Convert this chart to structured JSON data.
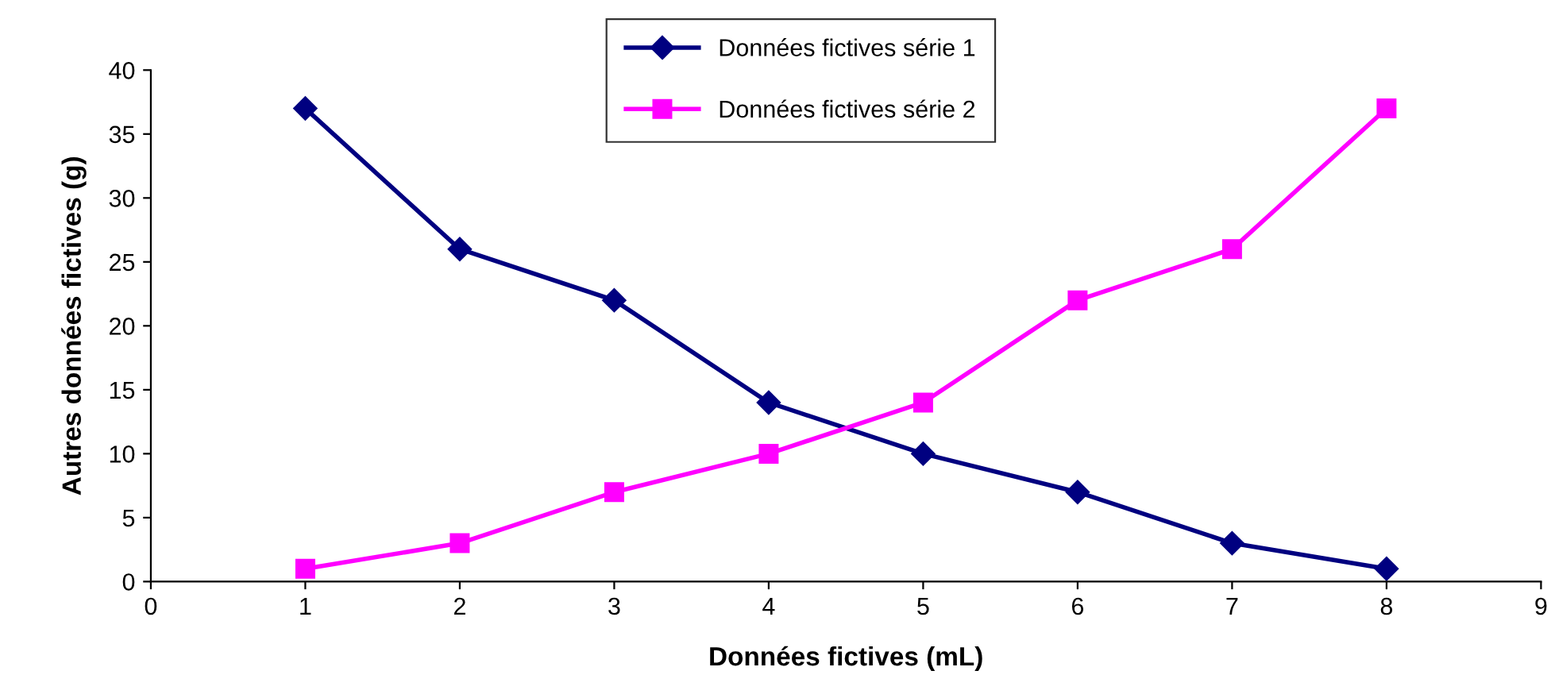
{
  "chart_data": {
    "type": "line",
    "xlabel": "Données fictives (mL)",
    "ylabel": "Autres données fictives (g)",
    "x": [
      1,
      2,
      3,
      4,
      5,
      6,
      7,
      8
    ],
    "series": [
      {
        "name": "Données fictives série 1",
        "color": "#000080",
        "marker": "diamond",
        "values": [
          37,
          26,
          22,
          14,
          10,
          7,
          3,
          1
        ]
      },
      {
        "name": "Données fictives série 2",
        "color": "#ff00ff",
        "marker": "square",
        "values": [
          1,
          3,
          7,
          10,
          14,
          22,
          26,
          37
        ]
      }
    ],
    "xlim": [
      0,
      9
    ],
    "xticks": [
      0,
      1,
      2,
      3,
      4,
      5,
      6,
      7,
      8,
      9
    ],
    "ylim": [
      0,
      40
    ],
    "yticks": [
      0,
      5,
      10,
      15,
      20,
      25,
      30,
      35,
      40
    ],
    "grid": false,
    "legend": "top"
  }
}
